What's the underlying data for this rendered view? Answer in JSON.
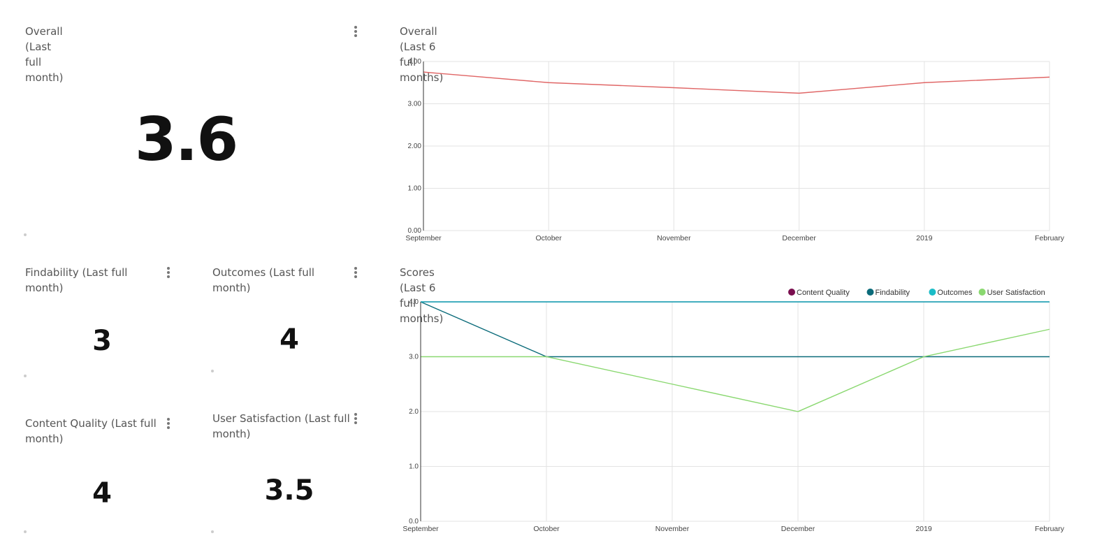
{
  "overall_card": {
    "title": "Overall (Last full month)",
    "value": "3.6"
  },
  "findability_card": {
    "title": "Findability (Last full month)",
    "value": "3"
  },
  "outcomes_card": {
    "title": "Outcomes (Last full month)",
    "value": "4"
  },
  "content_quality_card": {
    "title": "Content Quality (Last full month)",
    "value": "4"
  },
  "user_satisfaction_card": {
    "title": "User Satisfaction (Last full month)",
    "value": "3.5"
  },
  "chart_data": [
    {
      "type": "line",
      "title": "Overall (Last 6 full months)",
      "categories": [
        "September",
        "October",
        "November",
        "December",
        "2019",
        "February"
      ],
      "series": [
        {
          "name": "Overall",
          "color": "#e06666",
          "values": [
            3.75,
            3.5,
            3.38,
            3.25,
            3.5,
            3.63
          ]
        }
      ],
      "ylim": [
        0,
        4
      ],
      "yticks": [
        "0.00",
        "1.00",
        "2.00",
        "3.00",
        "4.00"
      ],
      "legend": "none",
      "grid": true
    },
    {
      "type": "line",
      "title": "Scores (Last 6 full months)",
      "categories": [
        "September",
        "October",
        "November",
        "December",
        "2019",
        "February"
      ],
      "series": [
        {
          "name": "Content Quality",
          "color": "#7a0f4f",
          "values": [
            4,
            4,
            4,
            4,
            4,
            4
          ]
        },
        {
          "name": "Findability",
          "color": "#0b6b7a",
          "values": [
            4,
            3,
            3,
            3,
            3,
            3
          ]
        },
        {
          "name": "Outcomes",
          "color": "#1bbcc7",
          "values": [
            4,
            4,
            4,
            4,
            4,
            4
          ]
        },
        {
          "name": "User Satisfaction",
          "color": "#8ad870",
          "values": [
            3,
            3,
            2.5,
            2,
            3,
            3.5
          ]
        }
      ],
      "ylim": [
        0,
        4
      ],
      "yticks": [
        "0.0",
        "1.0",
        "2.0",
        "3.0",
        "4.0"
      ],
      "legend": "top-right",
      "grid": true
    }
  ]
}
